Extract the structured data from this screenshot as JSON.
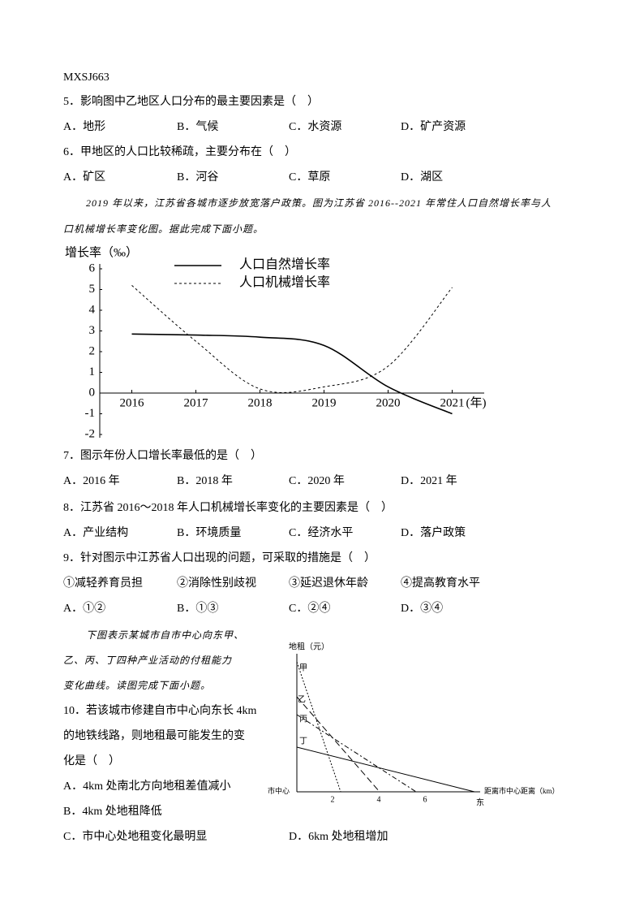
{
  "header": {
    "code": "MXSJ663"
  },
  "questions": [
    {
      "stem": "5．影响图中乙地区人口分布的最主要因素是（　）",
      "options": [
        "A．地形",
        "B．气候",
        "C．水资源",
        "D．矿产资源"
      ]
    },
    {
      "stem": "6．甲地区的人口比较稀疏，主要分布在（　）",
      "options": [
        "A．矿区",
        "B．河谷",
        "C．草原",
        "D．湖区"
      ]
    },
    {
      "stem": "7．图示年份人口增长率最低的是（　）",
      "options": [
        "A．2016 年",
        "B．2018 年",
        "C．2020 年",
        "D．2021 年"
      ]
    },
    {
      "stem": "8．江苏省 2016～2018 年人口机械增长率变化的主要因素是（　）",
      "options": [
        "A．产业结构",
        "B．环境质量",
        "C．经济水平",
        "D．落户政策"
      ]
    },
    {
      "stem": "9．针对图示中江苏省人口出现的问题，可采取的措施是（　）",
      "statements": [
        "①减轻养育员担",
        "②消除性别歧视",
        "③延迟退休年龄",
        "④提高教育水平"
      ],
      "options": [
        "A．①②",
        "B．①③",
        "C．②④",
        "D．③④"
      ]
    },
    {
      "stem_lines": [
        "10．若该城市修建自市中心向东长 4km",
        "的地铁线路，则地租最可能发生的变",
        "化是（　）"
      ],
      "options": [
        "A．4km 处南北方向地租差值减小",
        "B．4km 处地租降低",
        "C．市中心处地租变化最明显",
        "D．6km 处地租增加"
      ]
    }
  ],
  "passage1": [
    "2019 年以来，江苏省各城市逐步放宽落户政策。图为江苏省 2016--2021 年常住人口自然增长率与人",
    "口机械增长率变化图。据此完成下面小题。"
  ],
  "passage2": [
    "下图表示某城市自市中心向东甲、",
    "乙、丙、丁四种产业活动的付租能力",
    "变化曲线。读图完成下面小题。"
  ],
  "chart_data": {
    "type": "line",
    "y_label": "增长率（‰）",
    "x_unit": "(年)",
    "x": [
      2016,
      2017,
      2018,
      2019,
      2020,
      2021
    ],
    "xlim": [
      2015.5,
      2021.5
    ],
    "xticks": [
      2016,
      2017,
      2018,
      2019,
      2020,
      2021
    ],
    "ylim": [
      -2,
      6
    ],
    "yticks": [
      -2,
      -1,
      0,
      1,
      2,
      3,
      4,
      5,
      6
    ],
    "series": [
      {
        "name": "人口自然增长率",
        "color": "#000000",
        "style": "solid",
        "values": [
          2.85,
          2.8,
          2.7,
          2.3,
          0.3,
          -1.0
        ]
      },
      {
        "name": "人口机械增长率",
        "color": "#000000",
        "style": "dashed",
        "values": [
          5.2,
          2.5,
          0.2,
          0.3,
          1.3,
          5.1
        ]
      }
    ]
  },
  "rent_diagram": {
    "y_label": "地租（元）",
    "origin": "市中心",
    "x_label": "距离市中心距离（km）",
    "direction": "东",
    "x_ticks": [
      "2",
      "4",
      "6"
    ],
    "curves": [
      "甲",
      "乙",
      "丙",
      "丁"
    ]
  }
}
